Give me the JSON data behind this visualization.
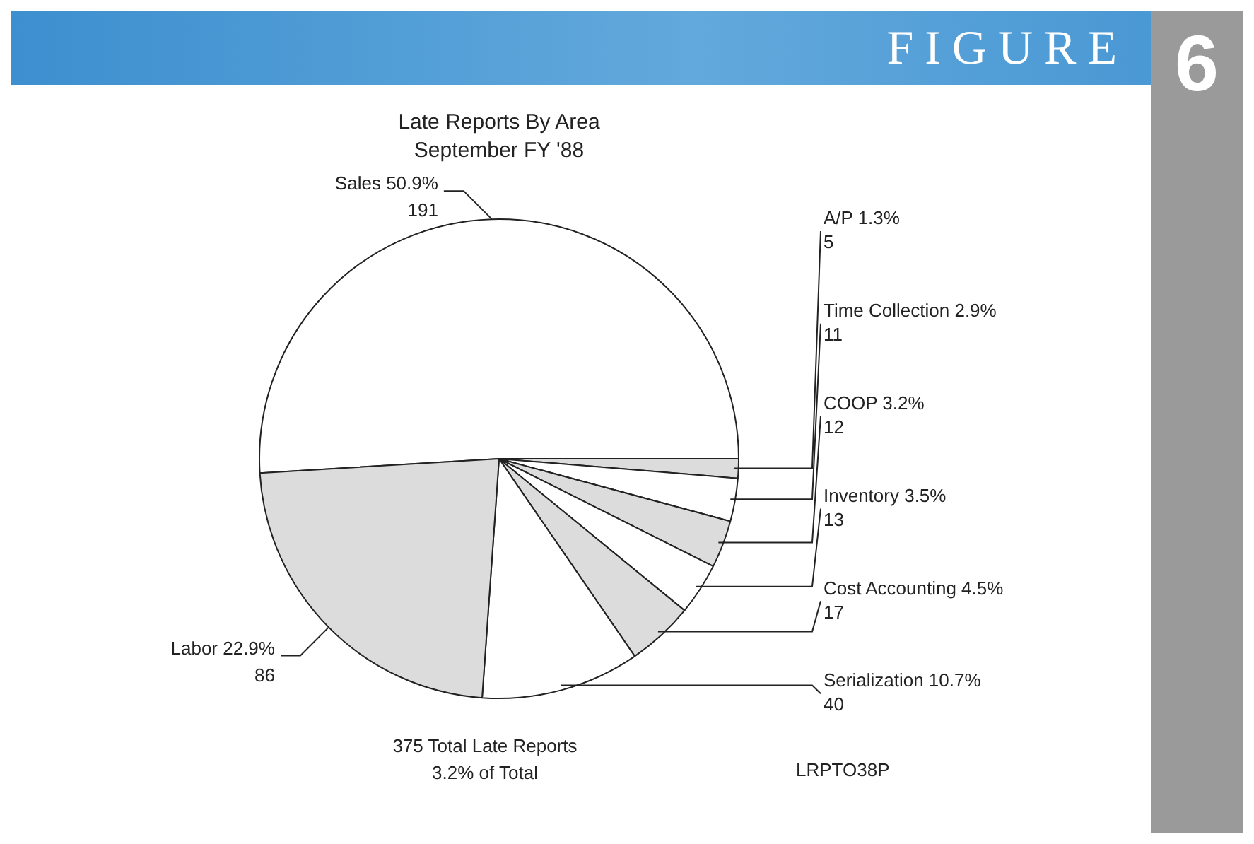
{
  "chart_data": {
    "type": "pie",
    "title": "Late Reports By Area",
    "subtitle": "September FY '88",
    "categories": [
      "Sales",
      "A/P",
      "Time Collection",
      "COOP",
      "Inventory",
      "Cost Accounting",
      "Serialization",
      "Labor"
    ],
    "values": [
      50.9,
      1.3,
      2.9,
      3.2,
      3.5,
      4.5,
      10.7,
      22.9
    ],
    "value_labels": [
      "50.9%\n191",
      "1.3%\n5",
      "2.9%\n11",
      "3.2%\n12",
      "3.5%\n13",
      "4.5%\n17",
      "10.7%\n40",
      "22.9%\n86"
    ],
    "colors": [
      "#ffffff",
      "#dcdcdc",
      "#ffffff",
      "#dcdcdc",
      "#ffffff",
      "#dcdcdc",
      "#ffffff",
      "#dcdcdc"
    ],
    "legend": false,
    "annotations": [
      "FIGURE",
      "6",
      "375 Total Late Reports",
      "3.2% of Total",
      "LRPTO38P"
    ]
  }
}
